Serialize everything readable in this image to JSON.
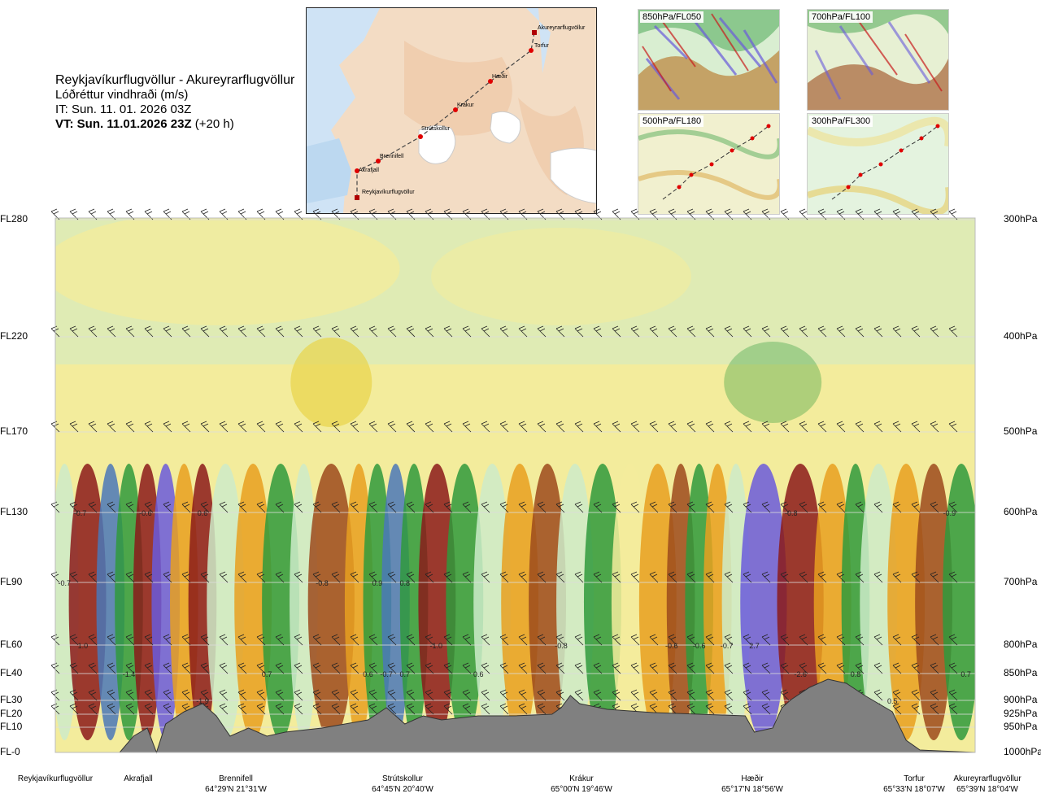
{
  "header": {
    "route": "Reykjavíkurflugvöllur - Akureyrarflugvöllur",
    "parameter": "Lóðréttur vindhraði (m/s)",
    "issue_time": "IT: Sun. 11. 01. 2026 03Z",
    "valid_time": "VT: Sun. 11.01.2026 23Z",
    "lead_time": "(+20 h)"
  },
  "route_map": {
    "waypoints": [
      "Akureyrarflugvöllur",
      "Torfur",
      "Hæðir",
      "Krákur",
      "Strútskollur",
      "Brennifell",
      "Akrafjall",
      "Reykjavíkurflugvöllur"
    ]
  },
  "thumbnails": [
    {
      "label": "850hPa/FL050"
    },
    {
      "label": "700hPa/FL100"
    },
    {
      "label": "500hPa/FL180"
    },
    {
      "label": "300hPa/FL300"
    }
  ],
  "colors": {
    "terrain": "#808080",
    "strong_down": "#8b1a1a",
    "down": "#e8a020",
    "weak_down": "#f3ec9c",
    "weak_up": "#cdebc9",
    "up": "#2f9a3c",
    "strong_up": "#4a78b8",
    "very_strong_up": "#6a5bdc"
  },
  "chart_data": {
    "type": "heatmap",
    "flight_levels": [
      {
        "fl": "FL280",
        "p": "300hPa"
      },
      {
        "fl": "FL220",
        "p": "400hPa"
      },
      {
        "fl": "FL170",
        "p": "500hPa"
      },
      {
        "fl": "FL130",
        "p": "600hPa"
      },
      {
        "fl": "FL90",
        "p": "700hPa"
      },
      {
        "fl": "FL60",
        "p": "800hPa"
      },
      {
        "fl": "FL40",
        "p": "850hPa"
      },
      {
        "fl": "FL30",
        "p": "900hPa"
      },
      {
        "fl": "FL20",
        "p": "925hPa"
      },
      {
        "fl": "FL10",
        "p": "950hPa"
      },
      {
        "fl": "FL-0",
        "p": "1000hPa"
      }
    ],
    "stations": [
      {
        "name": "Reykjavíkurflugvöllur",
        "coord": ""
      },
      {
        "name": "Akrafjall",
        "coord": ""
      },
      {
        "name": "Brennifell",
        "coord": "64°29'N 21°31'W"
      },
      {
        "name": "Strútskollur",
        "coord": "64°45'N 20°40'W"
      },
      {
        "name": "Krákur",
        "coord": "65°00'N 19°46'W"
      },
      {
        "name": "Hæðir",
        "coord": "65°17'N 18°56'W"
      },
      {
        "name": "Torfur",
        "coord": "65°33'N 18°07'W"
      },
      {
        "name": "Akureyrarflugvöllur",
        "coord": "65°39'N 18°04'W"
      }
    ],
    "value_labels": [
      {
        "text": "-0.7",
        "dist": 0.027,
        "p": 600
      },
      {
        "text": "-0.6",
        "dist": 0.098,
        "p": 600
      },
      {
        "text": "0.6",
        "dist": 0.16,
        "p": 600
      },
      {
        "text": "-0.8",
        "dist": 0.8,
        "p": 600
      },
      {
        "text": "-0.9",
        "dist": 0.972,
        "p": 600
      },
      {
        "text": "-0.7",
        "dist": 0.01,
        "p": 700
      },
      {
        "text": "-0.8",
        "dist": 0.29,
        "p": 700
      },
      {
        "text": "0.9",
        "dist": 0.35,
        "p": 700
      },
      {
        "text": "0.8",
        "dist": 0.38,
        "p": 700
      },
      {
        "text": "1.0",
        "dist": 0.03,
        "p": 800
      },
      {
        "text": "-1.0",
        "dist": 0.414,
        "p": 800
      },
      {
        "text": "-0.8",
        "dist": 0.55,
        "p": 800
      },
      {
        "text": "-0.6",
        "dist": 0.67,
        "p": 800
      },
      {
        "text": "-0.6",
        "dist": 0.7,
        "p": 800
      },
      {
        "text": "-0.7",
        "dist": 0.73,
        "p": 800
      },
      {
        "text": "2.7",
        "dist": 0.76,
        "p": 800
      },
      {
        "text": "-1.4",
        "dist": 0.08,
        "p": 850
      },
      {
        "text": "0.7",
        "dist": 0.23,
        "p": 850
      },
      {
        "text": "0.6",
        "dist": 0.34,
        "p": 850
      },
      {
        "text": "-0.7",
        "dist": 0.36,
        "p": 850
      },
      {
        "text": "0.7",
        "dist": 0.38,
        "p": 850
      },
      {
        "text": "0.6",
        "dist": 0.46,
        "p": 850
      },
      {
        "text": "-2.6",
        "dist": 0.81,
        "p": 850
      },
      {
        "text": "0.8",
        "dist": 0.87,
        "p": 850
      },
      {
        "text": "0.7",
        "dist": 0.99,
        "p": 850
      },
      {
        "text": "-1.9",
        "dist": 0.16,
        "p": 900
      },
      {
        "text": "0.5",
        "dist": 0.91,
        "p": 900
      }
    ]
  }
}
